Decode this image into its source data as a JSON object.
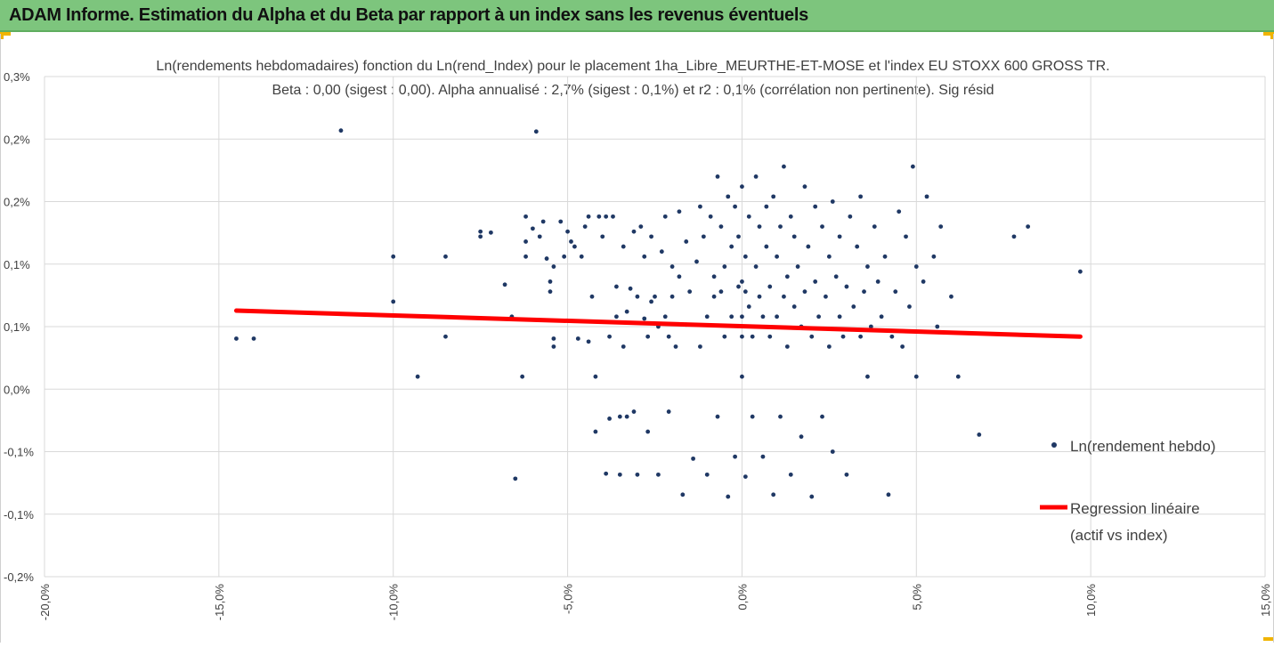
{
  "banner": {
    "title": "ADAM Informe. Estimation du Alpha et du Beta par rapport à un index sans les revenus éventuels"
  },
  "colors": {
    "banner_bg": "#7dc57d",
    "points": "#1f3864",
    "regression": "#ff0000",
    "corner": "#f0b400"
  },
  "chart_data": {
    "type": "scatter",
    "title": "Ln(rendements hebdomadaires) fonction du Ln(rend_Index) pour le placement 1ha_Libre_MEURTHE-ET-MOSE et l'index EU STOXX 600 GROSS TR.",
    "subtitle": "Beta : 0,00 (sigest : 0,00). Alpha annualisé : 2,7% (sigest : 0,1%) et r2 : 0,1% (corrélation non pertinente). Sig résid",
    "xlabel": "",
    "ylabel": "",
    "xlim": [
      -0.2,
      0.15
    ],
    "ylim": [
      -0.002,
      0.003
    ],
    "grid": {
      "vertical": true,
      "horizontal": true
    },
    "x_ticks": [
      "-20,0%",
      "-15,0%",
      "-10,0%",
      "-5,0%",
      "0,0%",
      "5,0%",
      "10,0%",
      "15,0%"
    ],
    "y_ticks": [
      "-0,2%",
      "-0,1%",
      "-0,1%",
      "0,0%",
      "0,1%",
      "0,1%",
      "0,2%",
      "0,2%",
      "0,3%"
    ],
    "legend_position": "right",
    "series": [
      {
        "name": "Ln(rendement hebdo)",
        "kind": "scatter",
        "points": [
          [
            -0.145,
            0.00038
          ],
          [
            -0.14,
            0.00038
          ],
          [
            -0.115,
            0.00246
          ],
          [
            -0.1,
            0.0012
          ],
          [
            -0.1,
            0.00075
          ],
          [
            -0.093,
            0.0
          ],
          [
            -0.085,
            0.0004
          ],
          [
            -0.085,
            0.0012
          ],
          [
            -0.075,
            0.0014
          ],
          [
            -0.075,
            0.00145
          ],
          [
            -0.072,
            0.00144
          ],
          [
            -0.068,
            0.00092
          ],
          [
            -0.066,
            0.0006
          ],
          [
            -0.065,
            -0.00102
          ],
          [
            -0.063,
            0.0
          ],
          [
            -0.062,
            0.0016
          ],
          [
            -0.062,
            0.00135
          ],
          [
            -0.062,
            0.0012
          ],
          [
            -0.06,
            0.00148
          ],
          [
            -0.059,
            0.00245
          ],
          [
            -0.058,
            0.0014
          ],
          [
            -0.057,
            0.00155
          ],
          [
            -0.056,
            0.00118
          ],
          [
            -0.055,
            0.00095
          ],
          [
            -0.055,
            0.00085
          ],
          [
            -0.054,
            0.00038
          ],
          [
            -0.054,
            0.0011
          ],
          [
            -0.054,
            0.0003
          ],
          [
            -0.052,
            0.00155
          ],
          [
            -0.051,
            0.0012
          ],
          [
            -0.05,
            0.00145
          ],
          [
            -0.049,
            0.00135
          ],
          [
            -0.048,
            0.0013
          ],
          [
            -0.047,
            0.00038
          ],
          [
            -0.046,
            0.0012
          ],
          [
            -0.045,
            0.0015
          ],
          [
            -0.044,
            0.0016
          ],
          [
            -0.044,
            0.00035
          ],
          [
            -0.043,
            0.0008
          ],
          [
            -0.042,
            0.0
          ],
          [
            -0.042,
            -0.00055
          ],
          [
            -0.041,
            0.0016
          ],
          [
            -0.04,
            0.0014
          ],
          [
            -0.039,
            0.0016
          ],
          [
            -0.039,
            -0.00097
          ],
          [
            -0.038,
            0.0004
          ],
          [
            -0.038,
            -0.00042
          ],
          [
            -0.037,
            0.0016
          ],
          [
            -0.036,
            0.0009
          ],
          [
            -0.036,
            0.0006
          ],
          [
            -0.035,
            -0.00098
          ],
          [
            -0.035,
            -0.0004
          ],
          [
            -0.034,
            0.0003
          ],
          [
            -0.034,
            0.0013
          ],
          [
            -0.033,
            0.00065
          ],
          [
            -0.033,
            -0.0004
          ],
          [
            -0.032,
            0.00088
          ],
          [
            -0.031,
            0.00145
          ],
          [
            -0.031,
            -0.00035
          ],
          [
            -0.03,
            0.0008
          ],
          [
            -0.03,
            -0.00098
          ],
          [
            -0.029,
            0.0015
          ],
          [
            -0.028,
            0.0012
          ],
          [
            -0.028,
            0.00058
          ],
          [
            -0.027,
            0.0004
          ],
          [
            -0.027,
            -0.00055
          ],
          [
            -0.026,
            0.0014
          ],
          [
            -0.026,
            0.00075
          ],
          [
            -0.025,
            0.0008
          ],
          [
            -0.024,
            0.0005
          ],
          [
            -0.024,
            -0.00098
          ],
          [
            -0.023,
            0.00125
          ],
          [
            -0.022,
            0.0016
          ],
          [
            -0.022,
            0.0006
          ],
          [
            -0.021,
            0.0004
          ],
          [
            -0.021,
            -0.00035
          ],
          [
            -0.02,
            0.0011
          ],
          [
            -0.02,
            0.0008
          ],
          [
            -0.019,
            0.0003
          ],
          [
            -0.018,
            0.00165
          ],
          [
            -0.018,
            0.001
          ],
          [
            -0.017,
            -0.00118
          ],
          [
            -0.016,
            0.00135
          ],
          [
            -0.016,
            0.00052
          ],
          [
            -0.015,
            0.00085
          ],
          [
            -0.014,
            -0.00082
          ],
          [
            -0.013,
            0.00115
          ],
          [
            -0.012,
            0.0017
          ],
          [
            -0.012,
            0.0003
          ],
          [
            -0.011,
            0.0014
          ],
          [
            -0.01,
            0.0006
          ],
          [
            -0.01,
            -0.00098
          ],
          [
            -0.009,
            0.0016
          ],
          [
            -0.008,
            0.001
          ],
          [
            -0.008,
            0.0008
          ],
          [
            -0.007,
            0.002
          ],
          [
            -0.007,
            -0.0004
          ],
          [
            -0.006,
            0.00085
          ],
          [
            -0.006,
            0.0015
          ],
          [
            -0.005,
            0.0011
          ],
          [
            -0.005,
            0.0004
          ],
          [
            -0.004,
            -0.0012
          ],
          [
            -0.004,
            0.0018
          ],
          [
            -0.003,
            0.0006
          ],
          [
            -0.003,
            0.0013
          ],
          [
            -0.002,
            0.0017
          ],
          [
            -0.002,
            -0.0008
          ],
          [
            -0.001,
            0.0014
          ],
          [
            -0.001,
            0.0009
          ],
          [
            0.0,
            0.0
          ],
          [
            0.0,
            0.0004
          ],
          [
            0.0,
            0.0006
          ],
          [
            0.0,
            0.00095
          ],
          [
            0.0,
            0.0019
          ],
          [
            0.001,
            0.0012
          ],
          [
            0.001,
            0.00085
          ],
          [
            0.001,
            -0.001
          ],
          [
            0.002,
            0.0007
          ],
          [
            0.002,
            0.0016
          ],
          [
            0.003,
            0.0004
          ],
          [
            0.003,
            -0.0004
          ],
          [
            0.004,
            0.0011
          ],
          [
            0.004,
            0.002
          ],
          [
            0.005,
            0.0008
          ],
          [
            0.005,
            0.0015
          ],
          [
            0.006,
            0.0006
          ],
          [
            0.006,
            -0.0008
          ],
          [
            0.007,
            0.0013
          ],
          [
            0.007,
            0.0017
          ],
          [
            0.008,
            0.0009
          ],
          [
            0.008,
            0.0004
          ],
          [
            0.009,
            0.0018
          ],
          [
            0.009,
            -0.00118
          ],
          [
            0.01,
            0.0012
          ],
          [
            0.01,
            0.0006
          ],
          [
            0.011,
            0.0015
          ],
          [
            0.011,
            -0.0004
          ],
          [
            0.012,
            0.0008
          ],
          [
            0.012,
            0.0021
          ],
          [
            0.013,
            0.001
          ],
          [
            0.013,
            0.0003
          ],
          [
            0.014,
            0.0016
          ],
          [
            0.014,
            -0.00098
          ],
          [
            0.015,
            0.0007
          ],
          [
            0.015,
            0.0014
          ],
          [
            0.016,
            0.0011
          ],
          [
            0.017,
            0.0005
          ],
          [
            0.017,
            -0.0006
          ],
          [
            0.018,
            0.0019
          ],
          [
            0.018,
            0.00085
          ],
          [
            0.019,
            0.0013
          ],
          [
            0.02,
            0.0004
          ],
          [
            0.02,
            -0.0012
          ],
          [
            0.021,
            0.0017
          ],
          [
            0.021,
            0.00095
          ],
          [
            0.022,
            0.0006
          ],
          [
            0.023,
            0.0015
          ],
          [
            0.023,
            -0.0004
          ],
          [
            0.024,
            0.0008
          ],
          [
            0.025,
            0.0012
          ],
          [
            0.025,
            0.0003
          ],
          [
            0.026,
            0.00175
          ],
          [
            0.026,
            -0.00075
          ],
          [
            0.027,
            0.001
          ],
          [
            0.028,
            0.0006
          ],
          [
            0.028,
            0.0014
          ],
          [
            0.029,
            0.0004
          ],
          [
            0.03,
            0.0009
          ],
          [
            0.03,
            -0.00098
          ],
          [
            0.031,
            0.0016
          ],
          [
            0.032,
            0.0007
          ],
          [
            0.033,
            0.0013
          ],
          [
            0.034,
            0.0004
          ],
          [
            0.034,
            0.0018
          ],
          [
            0.035,
            0.00085
          ],
          [
            0.036,
            0.0
          ],
          [
            0.036,
            0.0011
          ],
          [
            0.037,
            0.0005
          ],
          [
            0.038,
            0.0015
          ],
          [
            0.039,
            0.00095
          ],
          [
            0.04,
            0.0006
          ],
          [
            0.041,
            0.0012
          ],
          [
            0.042,
            -0.00118
          ],
          [
            0.043,
            0.0004
          ],
          [
            0.044,
            0.00085
          ],
          [
            0.045,
            0.00165
          ],
          [
            0.046,
            0.0003
          ],
          [
            0.047,
            0.0014
          ],
          [
            0.048,
            0.0007
          ],
          [
            0.049,
            0.0021
          ],
          [
            0.05,
            0.0011
          ],
          [
            0.05,
            0.0
          ],
          [
            0.052,
            0.00095
          ],
          [
            0.053,
            0.0018
          ],
          [
            0.055,
            0.0012
          ],
          [
            0.056,
            0.0005
          ],
          [
            0.057,
            0.0015
          ],
          [
            0.06,
            0.0008
          ],
          [
            0.062,
            0.0
          ],
          [
            0.068,
            -0.00058
          ],
          [
            0.078,
            0.0014
          ],
          [
            0.082,
            0.0015
          ],
          [
            0.097,
            0.00105
          ]
        ]
      },
      {
        "name": "Regression linéaire (actif vs index)",
        "kind": "line",
        "points": [
          [
            -0.145,
            0.00066
          ],
          [
            0.097,
            0.0004
          ]
        ]
      }
    ]
  },
  "legend": {
    "scatter_label": "Ln(rendement hebdo)",
    "line_label_1": "Regression linéaire",
    "line_label_2": "(actif vs index)"
  }
}
